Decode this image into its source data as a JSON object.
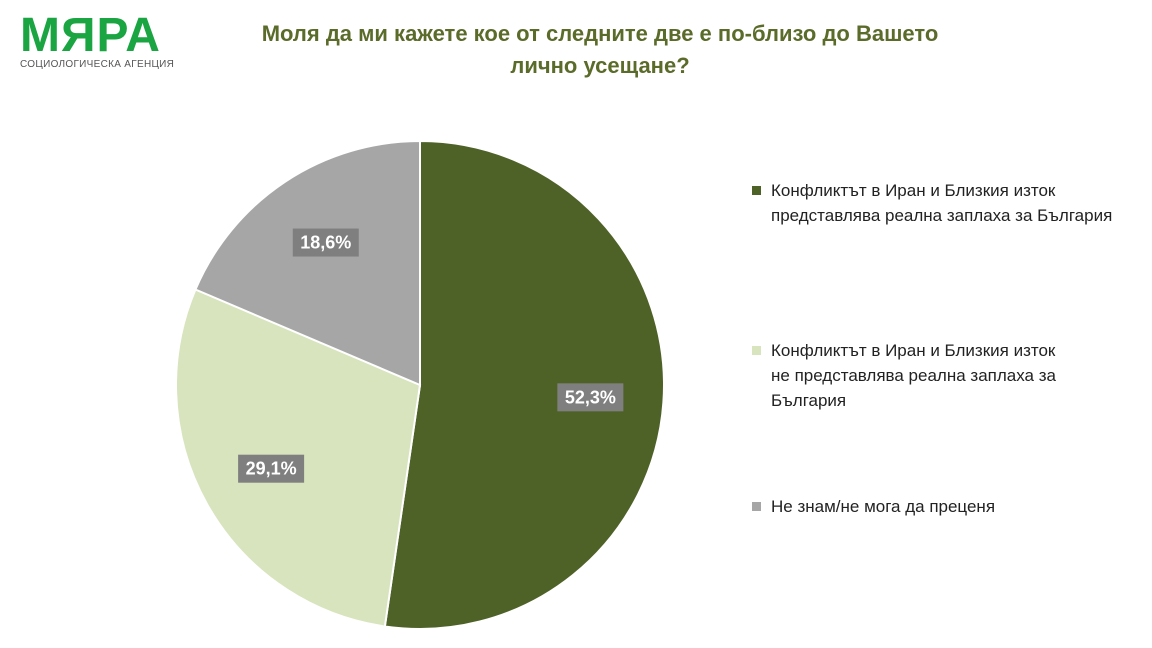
{
  "logo": {
    "word": "МЯРА",
    "subtitle": "СОЦИОЛОГИЧЕСКА АГЕНЦИЯ"
  },
  "title_lines": [
    "Моля да ми кажете кое от следните две е по-близо до Вашето",
    "лично усещане?"
  ],
  "colors": {
    "title": "#5a6b2a",
    "logo": "#1aa542"
  },
  "chart_data": {
    "type": "pie",
    "start_angle_deg": 0,
    "direction": "clockwise",
    "legend_position": "right",
    "slices": [
      {
        "label_lines": [
          "Конфликтът в Иран и Близкия изток",
          "представлява реална заплаха за България"
        ],
        "value": 52.3,
        "value_label": "52,3%",
        "color": "#4e6228"
      },
      {
        "label_lines": [
          "Конфликтът в Иран и Близкия изток",
          "не представлява реална заплаха за",
          "България"
        ],
        "value": 29.1,
        "value_label": "29,1%",
        "color": "#d7e4bd"
      },
      {
        "label_lines": [
          "Не знам/не мога да преценя"
        ],
        "value": 18.6,
        "value_label": "18,6%",
        "color": "#a6a6a6"
      }
    ]
  }
}
